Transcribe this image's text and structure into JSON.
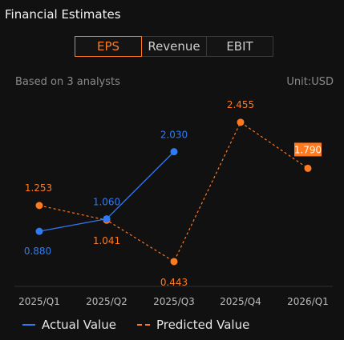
{
  "header": {
    "title": "Financial Estimates"
  },
  "tabs": [
    {
      "label": "EPS",
      "active": true
    },
    {
      "label": "Revenue",
      "active": false
    },
    {
      "label": "EBIT",
      "active": false
    }
  ],
  "meta": {
    "analysts": "Based on 3 analysts",
    "unit": "Unit:USD"
  },
  "colors": {
    "actual": "#2f7bf5",
    "predicted": "#ff7a1f",
    "highlight_bg": "#ff7a1f"
  },
  "chart_data": {
    "type": "line",
    "categories": [
      "2025/Q1",
      "2025/Q2",
      "2025/Q3",
      "2025/Q4",
      "2026/Q1"
    ],
    "series": [
      {
        "name": "Actual Value",
        "values": [
          0.88,
          1.06,
          2.03,
          null,
          null
        ],
        "labels": [
          "0.880",
          "1.060",
          "2.030",
          "",
          ""
        ]
      },
      {
        "name": "Predicted Value",
        "values": [
          1.253,
          1.041,
          0.443,
          2.455,
          1.79
        ],
        "labels": [
          "1.253",
          "1.041",
          "0.443",
          "2.455",
          "1.790"
        ],
        "highlighted_index": 4
      }
    ],
    "ylim": [
      0.2,
      2.8
    ],
    "grid": false,
    "legend_position": "bottom"
  },
  "legend": {
    "actual": "Actual Value",
    "predicted": "Predicted Value"
  }
}
